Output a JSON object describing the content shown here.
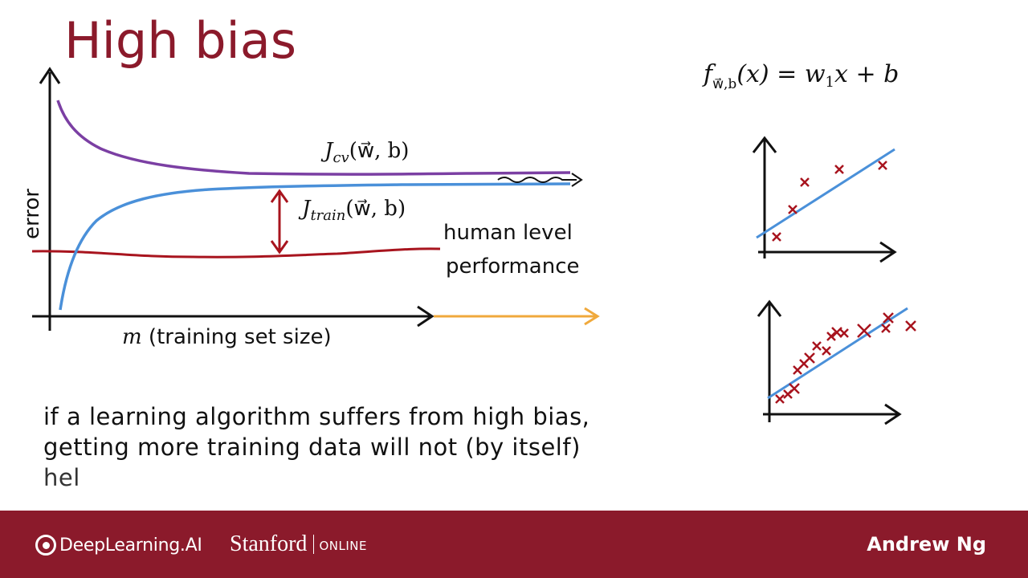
{
  "slide": {
    "title": "High bias",
    "left_chart": {
      "y_axis_label": "error",
      "x_axis_var": "m",
      "x_axis_label": " (training set size)",
      "curve_jcv_label": "J",
      "curve_jcv_sub": "cv",
      "curve_jcv_args": "(w⃗, b)",
      "curve_jtrain_label": "J",
      "curve_jtrain_sub": "train",
      "curve_jtrain_args": "(w⃗, b)",
      "human_level_line1": "human level",
      "human_level_line2": "performance",
      "colors": {
        "jcv": "#7b3fa3",
        "jtrain": "#4a90d9",
        "human": "#a8141e",
        "arrow_ext": "#f0a93c",
        "gap_arrow": "#a8141e"
      }
    },
    "formula": {
      "f": "f",
      "sub": "w⃗,b",
      "rest": "(x) = w",
      "w_sub": "1",
      "tail": "x + b"
    },
    "body_lines": [
      "if a learning algorithm suffers from high bias,",
      "getting more training data will not (by itself)",
      "hel"
    ]
  },
  "footer": {
    "brand": "DeepLearning.AI",
    "university": "Stanford",
    "university_suffix": "ONLINE",
    "presenter": "Andrew Ng"
  }
}
